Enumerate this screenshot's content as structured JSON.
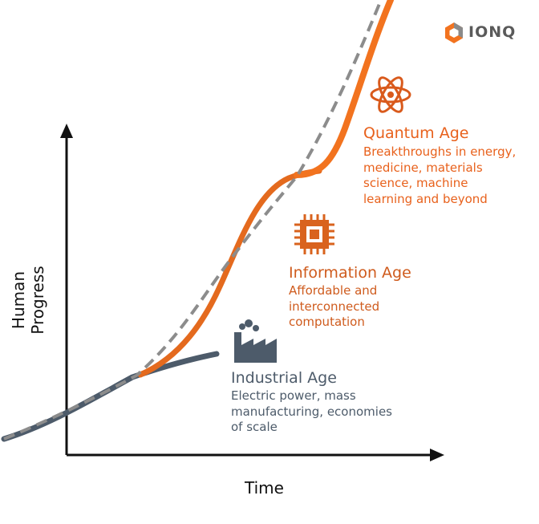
{
  "brand": {
    "name": "IONQ",
    "icon": "ionq-logo-icon"
  },
  "axes": {
    "x_label": "Time",
    "y_label": "Human Progress"
  },
  "eras": {
    "industrial": {
      "title": "Industrial Age",
      "line1": "Electric power, mass",
      "line2": "manufacturing, economies",
      "line3": "of scale",
      "icon": "factory-icon",
      "color": "#4d5b6a"
    },
    "information": {
      "title": "Information Age",
      "line1": "Affordable and",
      "line2": "interconnected",
      "line3": "computation",
      "icon": "microchip-icon",
      "color": "#cf5b1d"
    },
    "quantum": {
      "title": "Quantum Age",
      "line1": "Breakthroughs in energy,",
      "line2": "medicine, materials",
      "line3": "science, machine",
      "line4": "learning and beyond",
      "icon": "atom-icon",
      "color": "#e8611c"
    }
  },
  "colors": {
    "industrial_curve": "#4d5b6a",
    "information_curve": "#e46a1e",
    "quantum_curve": "#f2731f",
    "trend_line": "#8c8c8c",
    "axis": "#111111"
  }
}
